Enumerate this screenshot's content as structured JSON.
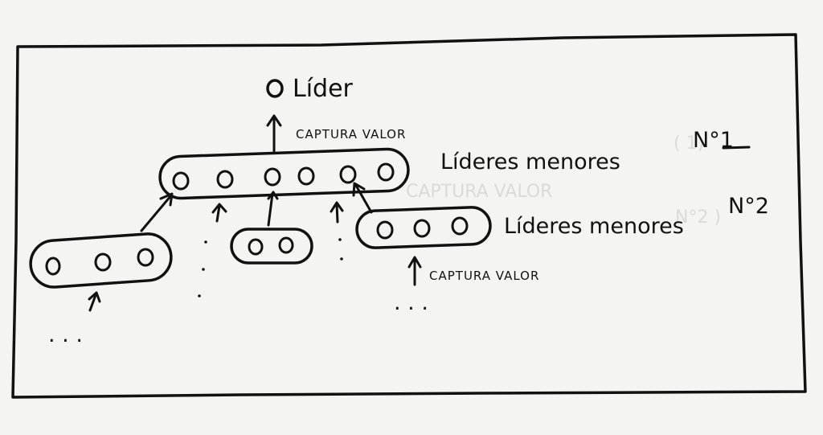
{
  "diagram": {
    "leader_label": "Líder",
    "leader_capture_label": "CAPTURA VALOR",
    "group1_label": "Líderes menores",
    "group1_number": "N°1",
    "group2_label": "Líderes menores",
    "group2_number": "N°2",
    "group2_capture_label": "CAPTURA VALOR",
    "continuation_marker": ". . ."
  },
  "colors": {
    "ink": "#111111",
    "paper": "#f4f4f2"
  }
}
